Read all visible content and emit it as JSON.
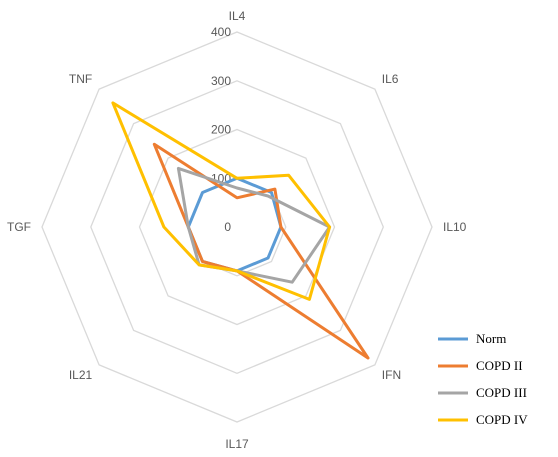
{
  "chart_data": {
    "type": "radar",
    "axes": [
      "IL4",
      "IL6",
      "IL10",
      "IFN",
      "IL17",
      "IL21",
      "TGF",
      "TNF"
    ],
    "rlim": [
      0,
      400
    ],
    "ticks": [
      "0",
      "100",
      "200",
      "300",
      "400"
    ],
    "tick_values": [
      0,
      100,
      200,
      300,
      400
    ],
    "grid": true,
    "legend_position": "bottom-right",
    "series": [
      {
        "name": "Norm",
        "color": "#5B9BD5",
        "values": [
          100,
          100,
          90,
          90,
          90,
          100,
          100,
          100
        ]
      },
      {
        "name": "COPD II",
        "color": "#ED7D31",
        "values": [
          60,
          110,
          90,
          380,
          90,
          100,
          100,
          240
        ]
      },
      {
        "name": "COPD III",
        "color": "#A5A5A5",
        "values": [
          80,
          90,
          190,
          160,
          90,
          110,
          100,
          170
        ]
      },
      {
        "name": "COPD IV",
        "color": "#FFC000",
        "values": [
          100,
          150,
          190,
          210,
          90,
          110,
          150,
          360
        ]
      }
    ]
  }
}
